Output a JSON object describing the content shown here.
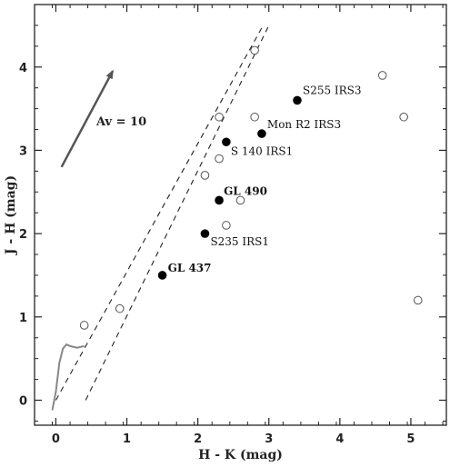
{
  "chart_data": {
    "type": "scatter",
    "xlabel": "H - K (mag)",
    "ylabel": "J - H (mag)",
    "xlim": [
      -0.3,
      5.5
    ],
    "ylim": [
      -0.3,
      4.75
    ],
    "x_ticks": [
      0,
      1,
      2,
      3,
      4,
      5
    ],
    "y_ticks": [
      0,
      1,
      2,
      3,
      4
    ],
    "grid": false,
    "series": [
      {
        "marker": "filled-circle",
        "points": [
          {
            "x": 1.5,
            "y": 1.5,
            "label": "GL 437"
          },
          {
            "x": 2.1,
            "y": 2.0,
            "label": "S235 IRS1"
          },
          {
            "x": 2.3,
            "y": 2.4,
            "label": "GL 490"
          },
          {
            "x": 2.4,
            "y": 3.1,
            "label": "S 140 IRS1"
          },
          {
            "x": 2.9,
            "y": 3.2,
            "label": "Mon R2 IRS3"
          },
          {
            "x": 3.4,
            "y": 3.6,
            "label": "S255 IRS3"
          }
        ]
      },
      {
        "marker": "open-circle",
        "points": [
          {
            "x": 0.4,
            "y": 0.9
          },
          {
            "x": 0.9,
            "y": 1.1
          },
          {
            "x": 2.1,
            "y": 2.7
          },
          {
            "x": 2.3,
            "y": 2.9
          },
          {
            "x": 2.3,
            "y": 3.4
          },
          {
            "x": 2.4,
            "y": 2.1
          },
          {
            "x": 2.6,
            "y": 2.4
          },
          {
            "x": 2.8,
            "y": 3.4
          },
          {
            "x": 2.8,
            "y": 4.2
          },
          {
            "x": 4.6,
            "y": 3.9
          },
          {
            "x": 4.9,
            "y": 3.4
          },
          {
            "x": 5.1,
            "y": 1.2
          }
        ]
      }
    ],
    "reddening_lines": [
      {
        "style": "dashed",
        "from": [
          0.0,
          0.0
        ],
        "to": [
          2.92,
          4.5
        ]
      },
      {
        "style": "dashed",
        "from": [
          0.42,
          0.0
        ],
        "to": [
          3.0,
          4.5
        ]
      }
    ],
    "intrinsic_locus": {
      "style": "solid-gray",
      "points": [
        [
          -0.05,
          -0.12
        ],
        [
          0.0,
          0.1
        ],
        [
          0.05,
          0.45
        ],
        [
          0.1,
          0.62
        ],
        [
          0.15,
          0.67
        ],
        [
          0.2,
          0.65
        ],
        [
          0.3,
          0.63
        ],
        [
          0.4,
          0.65
        ]
      ]
    },
    "reddening_vector": {
      "label": "Av = 10",
      "from": [
        0.08,
        2.8
      ],
      "to": [
        0.8,
        3.95
      ]
    }
  }
}
